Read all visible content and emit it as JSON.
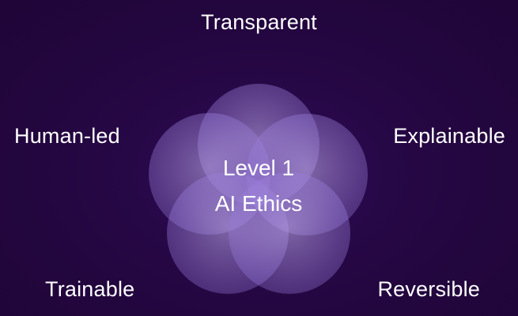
{
  "labels": {
    "top": "Transparent",
    "left": "Human-led",
    "right": "Explainable",
    "bottom_left": "Trainable",
    "bottom_right": "Reversible"
  },
  "center": {
    "line1": "Level 1",
    "line2": "AI Ethics"
  },
  "colors": {
    "background": "#23063f",
    "circle_fill": "#b9a2ea",
    "text": "#ffffff"
  }
}
